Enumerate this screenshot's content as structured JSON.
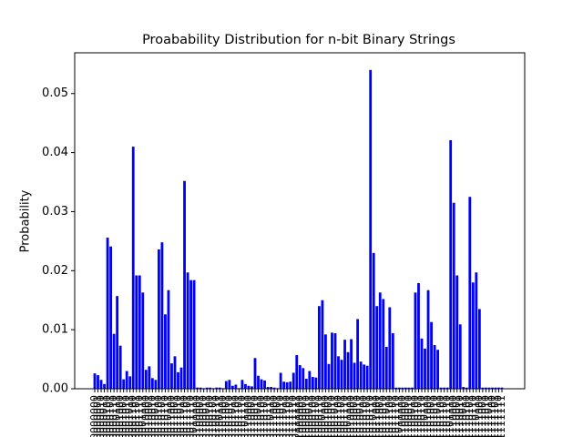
{
  "chart_data": {
    "type": "bar",
    "title": "Proabability Distribution for n-bit Binary Strings",
    "y_label": "Probability",
    "color": "#0000ff",
    "categories": [
      "0000000",
      "0000001",
      "0000010",
      "0000011",
      "0000100",
      "0000101",
      "0000110",
      "0000111",
      "0001000",
      "0001001",
      "0001010",
      "0001011",
      "0001100",
      "0001101",
      "0001110",
      "0001111",
      "0010000",
      "0010001",
      "0010010",
      "0010011",
      "0010100",
      "0010101",
      "0010110",
      "0010111",
      "0011000",
      "0011001",
      "0011010",
      "0011011",
      "0011100",
      "0011101",
      "0011110",
      "0011111",
      "0100000",
      "0100001",
      "0100010",
      "0100011",
      "0100100",
      "0100101",
      "0100110",
      "0100111",
      "0101000",
      "0101001",
      "0101010",
      "0101011",
      "0101100",
      "0101101",
      "0101110",
      "0101111",
      "0110000",
      "0110001",
      "0110010",
      "0110011",
      "0110100",
      "0110101",
      "0110110",
      "0110111",
      "0111000",
      "0111001",
      "0111010",
      "0111011",
      "0111100",
      "0111101",
      "0111110",
      "0111111",
      "1000000",
      "1000001",
      "1000010",
      "1000011",
      "1000100",
      "1000101",
      "1000110",
      "1000111",
      "1001000",
      "1001001",
      "1001010",
      "1001011",
      "1001100",
      "1001101",
      "1001110",
      "1001111",
      "1010000",
      "1010001",
      "1010010",
      "1010011",
      "1010100",
      "1010101",
      "1010110",
      "1010111",
      "1011000",
      "1011001",
      "1011010",
      "1011011",
      "1011100",
      "1011101",
      "1011110",
      "1011111",
      "1100000",
      "1100001",
      "1100010",
      "1100011",
      "1100100",
      "1100101",
      "1100110",
      "1100111",
      "1101000",
      "1101001",
      "1101010",
      "1101011",
      "1101100",
      "1101101",
      "1101110",
      "1101111",
      "1110000",
      "1110001",
      "1110010",
      "1110011",
      "1110100",
      "1110101",
      "1110110",
      "1110111",
      "1111000",
      "1111001",
      "1111010",
      "1111011",
      "1111100",
      "1111101",
      "1111110",
      "1111111"
    ],
    "values": [
      0.0026,
      0.0023,
      0.0015,
      0.0008,
      0.0256,
      0.0241,
      0.0093,
      0.0157,
      0.0073,
      0.0016,
      0.003,
      0.0021,
      0.041,
      0.0192,
      0.0192,
      0.0163,
      0.0032,
      0.0038,
      0.0018,
      0.0015,
      0.0236,
      0.0248,
      0.0126,
      0.0167,
      0.0043,
      0.0055,
      0.0028,
      0.0036,
      0.0352,
      0.0197,
      0.0184,
      0.0184,
      0.0002,
      0.0002,
      0.0001,
      0.0002,
      0.0002,
      0.0001,
      0.0002,
      0.0002,
      0.0001,
      0.0013,
      0.0015,
      0.0005,
      0.0007,
      0.0001,
      0.0015,
      0.0008,
      0.0005,
      0.0004,
      0.0052,
      0.0022,
      0.0016,
      0.0014,
      0.0003,
      0.0003,
      0.0002,
      0.0001,
      0.0027,
      0.0012,
      0.0011,
      0.0012,
      0.0027,
      0.0057,
      0.004,
      0.0035,
      0.0017,
      0.003,
      0.002,
      0.0019,
      0.014,
      0.015,
      0.0092,
      0.0042,
      0.0095,
      0.0094,
      0.0055,
      0.0049,
      0.0083,
      0.0062,
      0.0084,
      0.0044,
      0.0118,
      0.0046,
      0.0041,
      0.0039,
      0.054,
      0.023,
      0.014,
      0.0163,
      0.0152,
      0.0071,
      0.0138,
      0.0094,
      0.0002,
      0.0002,
      0.0002,
      0.0002,
      0.0002,
      0.0002,
      0.0163,
      0.0179,
      0.0085,
      0.0068,
      0.0167,
      0.0113,
      0.0074,
      0.0066,
      0.0002,
      0.0002,
      0.0002,
      0.0421,
      0.0315,
      0.0192,
      0.0109,
      0.0003,
      0.0002,
      0.0325,
      0.018,
      0.0197,
      0.0135,
      0.0002,
      0.0002,
      0.0002,
      0.0002,
      0.0002,
      0.0002,
      0.0002
    ],
    "ylim": [
      0,
      0.0569
    ],
    "yticks": [
      {
        "value": 0,
        "label": "0.00"
      },
      {
        "value": 0.01,
        "label": "0.01"
      },
      {
        "value": 0.02,
        "label": "0.02"
      },
      {
        "value": 0.03,
        "label": "0.03"
      },
      {
        "value": 0.04,
        "label": "0.04"
      },
      {
        "value": 0.05,
        "label": "0.05"
      }
    ],
    "grid": false
  }
}
